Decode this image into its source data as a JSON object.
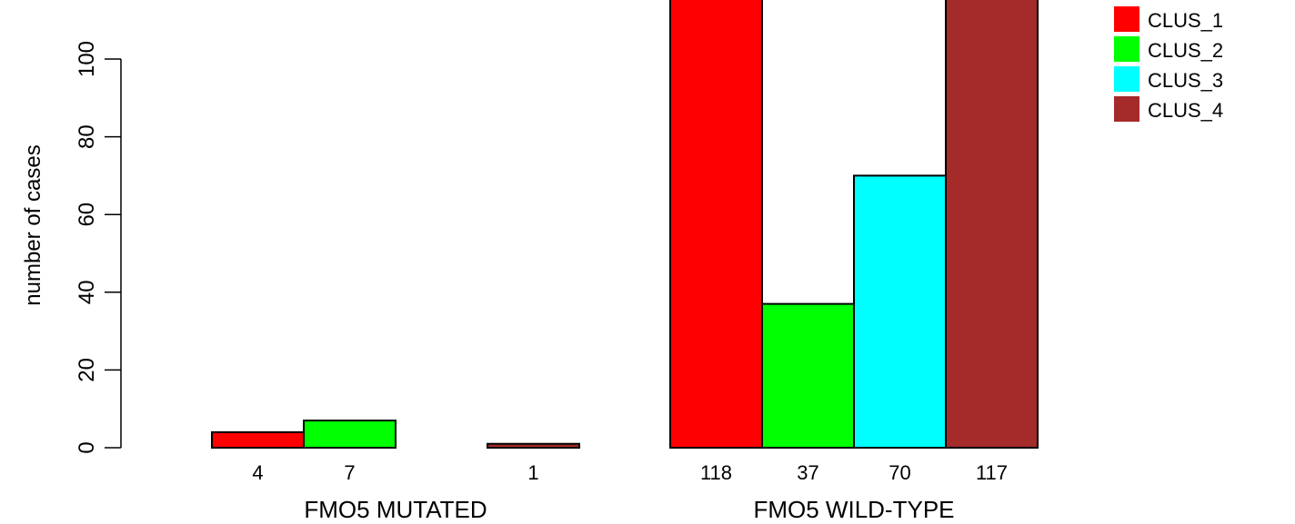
{
  "chart_data": {
    "type": "bar",
    "ylabel": "number of cases",
    "ylim": [
      0,
      100
    ],
    "yticks": [
      0,
      20,
      40,
      60,
      80,
      100
    ],
    "groups": [
      {
        "label": "FMO5 MUTATED",
        "values": [
          4,
          7,
          0,
          1
        ],
        "bar_labels": [
          "4",
          "7",
          "",
          "1"
        ]
      },
      {
        "label": "FMO5 WILD-TYPE",
        "values": [
          118,
          37,
          70,
          117
        ],
        "bar_labels": [
          "118",
          "37",
          "70",
          "117"
        ]
      }
    ],
    "series": [
      {
        "name": "CLUS_1",
        "color": "#ff0000"
      },
      {
        "name": "CLUS_2",
        "color": "#00ff00"
      },
      {
        "name": "CLUS_3",
        "color": "#00ffff"
      },
      {
        "name": "CLUS_4",
        "color": "#a52a2a"
      }
    ],
    "legend_position": "top-right",
    "grid": false
  }
}
